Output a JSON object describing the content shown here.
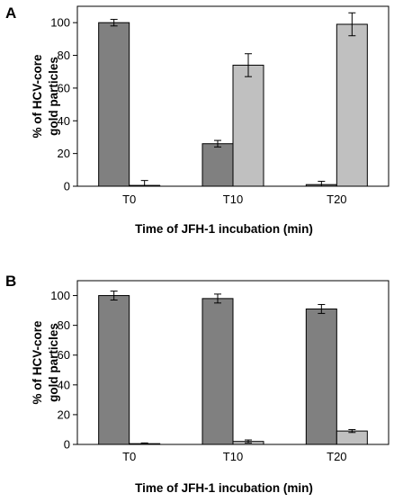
{
  "chart_data": [
    {
      "type": "bar",
      "panel_label": "A",
      "categories": [
        "T0",
        "T10",
        "T20"
      ],
      "series": [
        {
          "values": [
            100,
            26,
            1
          ],
          "errors": [
            2,
            2,
            2
          ],
          "color": "#808080"
        },
        {
          "values": [
            0.5,
            74,
            99
          ],
          "errors": [
            3,
            7,
            7
          ],
          "color": "#c0c0c0"
        }
      ],
      "xlabel": "Time of JFH-1 incubation (min)",
      "ylabel_lines": [
        "% of HCV-core",
        "gold particles"
      ],
      "ylim": [
        0,
        110
      ],
      "yticks": [
        0,
        20,
        40,
        60,
        80,
        100
      ],
      "grid": false,
      "legend": "none"
    },
    {
      "type": "bar",
      "panel_label": "B",
      "categories": [
        "T0",
        "T10",
        "T20"
      ],
      "series": [
        {
          "values": [
            100,
            98,
            91
          ],
          "errors": [
            3,
            3,
            3
          ],
          "color": "#808080"
        },
        {
          "values": [
            0.5,
            2,
            9
          ],
          "errors": [
            0.5,
            1,
            1
          ],
          "color": "#c0c0c0"
        }
      ],
      "xlabel": "Time of JFH-1 incubation (min)",
      "ylabel_lines": [
        "% of HCV-core",
        "gold particles"
      ],
      "ylim": [
        0,
        110
      ],
      "yticks": [
        0,
        20,
        40,
        60,
        80,
        100
      ],
      "grid": false,
      "legend": "none"
    }
  ]
}
